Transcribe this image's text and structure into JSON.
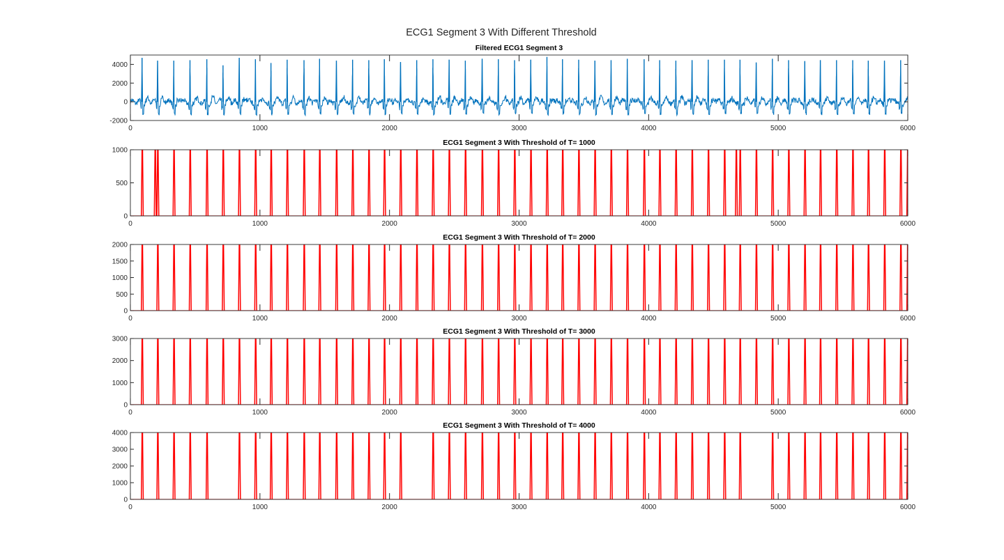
{
  "figure": {
    "suptitle": "ECG1 Segment 3 With Different Threshold"
  },
  "chart_data": [
    {
      "type": "line",
      "title": "Filtered ECG1 Segment 3",
      "xlabel": "",
      "ylabel": "",
      "xlim": [
        0,
        6000
      ],
      "ylim": [
        -2000,
        5000
      ],
      "xticks": [
        0,
        1000,
        2000,
        3000,
        4000,
        5000,
        6000
      ],
      "yticks": [
        -2000,
        0,
        2000,
        4000
      ],
      "grid": false,
      "color": "#0072BD",
      "r_peaks": [
        {
          "x": 90,
          "y": 4700
        },
        {
          "x": 210,
          "y": 4400
        },
        {
          "x": 335,
          "y": 4400
        },
        {
          "x": 460,
          "y": 4450
        },
        {
          "x": 590,
          "y": 4550
        },
        {
          "x": 715,
          "y": 3900
        },
        {
          "x": 840,
          "y": 4700
        },
        {
          "x": 965,
          "y": 4550
        },
        {
          "x": 1085,
          "y": 4150
        },
        {
          "x": 1210,
          "y": 4500
        },
        {
          "x": 1340,
          "y": 4450
        },
        {
          "x": 1460,
          "y": 4600
        },
        {
          "x": 1590,
          "y": 4400
        },
        {
          "x": 1715,
          "y": 4500
        },
        {
          "x": 1840,
          "y": 4450
        },
        {
          "x": 1960,
          "y": 4550
        },
        {
          "x": 2085,
          "y": 4250
        },
        {
          "x": 2210,
          "y": 4450
        },
        {
          "x": 2335,
          "y": 4550
        },
        {
          "x": 2460,
          "y": 4500
        },
        {
          "x": 2585,
          "y": 4400
        },
        {
          "x": 2715,
          "y": 4600
        },
        {
          "x": 2840,
          "y": 4550
        },
        {
          "x": 2965,
          "y": 4450
        },
        {
          "x": 3090,
          "y": 4500
        },
        {
          "x": 3215,
          "y": 4800
        },
        {
          "x": 3335,
          "y": 4550
        },
        {
          "x": 3460,
          "y": 4500
        },
        {
          "x": 3585,
          "y": 4400
        },
        {
          "x": 3710,
          "y": 4450
        },
        {
          "x": 3835,
          "y": 4600
        },
        {
          "x": 3965,
          "y": 4550
        },
        {
          "x": 4085,
          "y": 4450
        },
        {
          "x": 4210,
          "y": 4400
        },
        {
          "x": 4335,
          "y": 4450
        },
        {
          "x": 4460,
          "y": 4500
        },
        {
          "x": 4585,
          "y": 4500
        },
        {
          "x": 4705,
          "y": 4500
        },
        {
          "x": 4830,
          "y": 4200
        },
        {
          "x": 4955,
          "y": 4600
        },
        {
          "x": 5080,
          "y": 4450
        },
        {
          "x": 5205,
          "y": 4350
        },
        {
          "x": 5325,
          "y": 4450
        },
        {
          "x": 5450,
          "y": 4450
        },
        {
          "x": 5575,
          "y": 4450
        },
        {
          "x": 5695,
          "y": 4400
        },
        {
          "x": 5820,
          "y": 4400
        },
        {
          "x": 5945,
          "y": 4450
        }
      ]
    },
    {
      "type": "line",
      "title": "ECG1 Segment 3 With Threshold of T= 1000",
      "xlabel": "",
      "ylabel": "",
      "xlim": [
        0,
        6000
      ],
      "ylim": [
        0,
        1000
      ],
      "xticks": [
        0,
        1000,
        2000,
        3000,
        4000,
        5000,
        6000
      ],
      "yticks": [
        0,
        500,
        1000
      ],
      "grid": false,
      "color": "#FF0000",
      "pulse_level": 1000,
      "pulses": [
        90,
        190,
        210,
        335,
        460,
        590,
        715,
        840,
        965,
        1085,
        1210,
        1340,
        1460,
        1590,
        1715,
        1840,
        1960,
        2085,
        2210,
        2335,
        2460,
        2585,
        2715,
        2840,
        2965,
        3090,
        3215,
        3335,
        3460,
        3585,
        3710,
        3835,
        3965,
        4085,
        4210,
        4335,
        4460,
        4585,
        4675,
        4705,
        4830,
        4955,
        5080,
        5205,
        5325,
        5450,
        5575,
        5695,
        5820,
        5945,
        5998
      ]
    },
    {
      "type": "line",
      "title": "ECG1 Segment 3 With Threshold of T= 2000",
      "xlabel": "",
      "ylabel": "",
      "xlim": [
        0,
        6000
      ],
      "ylim": [
        0,
        2000
      ],
      "xticks": [
        0,
        1000,
        2000,
        3000,
        4000,
        5000,
        6000
      ],
      "yticks": [
        0,
        500,
        1000,
        1500,
        2000
      ],
      "grid": false,
      "color": "#FF0000",
      "pulse_level": 2000,
      "pulses": [
        90,
        210,
        335,
        460,
        590,
        715,
        840,
        965,
        1085,
        1210,
        1340,
        1460,
        1590,
        1715,
        1840,
        1960,
        2085,
        2210,
        2335,
        2460,
        2585,
        2715,
        2840,
        2965,
        3090,
        3215,
        3335,
        3460,
        3585,
        3710,
        3835,
        3965,
        4085,
        4210,
        4335,
        4460,
        4585,
        4705,
        4830,
        4955,
        5080,
        5205,
        5325,
        5450,
        5575,
        5695,
        5820,
        5945,
        5998
      ]
    },
    {
      "type": "line",
      "title": "ECG1 Segment 3 With Threshold of T= 3000",
      "xlabel": "",
      "ylabel": "",
      "xlim": [
        0,
        6000
      ],
      "ylim": [
        0,
        3000
      ],
      "xticks": [
        0,
        1000,
        2000,
        3000,
        4000,
        5000,
        6000
      ],
      "yticks": [
        0,
        1000,
        2000,
        3000
      ],
      "grid": false,
      "color": "#FF0000",
      "pulse_level": 3000,
      "pulses": [
        90,
        210,
        335,
        460,
        590,
        715,
        840,
        965,
        1085,
        1210,
        1340,
        1460,
        1590,
        1715,
        1840,
        1960,
        2085,
        2210,
        2335,
        2460,
        2585,
        2715,
        2840,
        2965,
        3090,
        3215,
        3335,
        3460,
        3585,
        3710,
        3835,
        3965,
        4085,
        4210,
        4335,
        4460,
        4585,
        4705,
        4830,
        4955,
        5080,
        5205,
        5325,
        5450,
        5575,
        5695,
        5820,
        5945,
        5998
      ]
    },
    {
      "type": "line",
      "title": "ECG1 Segment 3 With Threshold of T= 4000",
      "xlabel": "",
      "ylabel": "",
      "xlim": [
        0,
        6000
      ],
      "ylim": [
        0,
        4000
      ],
      "xticks": [
        0,
        1000,
        2000,
        3000,
        4000,
        5000,
        6000
      ],
      "yticks": [
        0,
        1000,
        2000,
        3000,
        4000
      ],
      "grid": false,
      "color": "#FF0000",
      "pulse_level": 4000,
      "pulses": [
        90,
        210,
        335,
        460,
        590,
        840,
        965,
        1085,
        1210,
        1340,
        1460,
        1590,
        1715,
        1840,
        1960,
        2085,
        2335,
        2460,
        2585,
        2715,
        2840,
        2965,
        3090,
        3215,
        3335,
        3460,
        3585,
        3710,
        3835,
        3965,
        4085,
        4210,
        4335,
        4460,
        4585,
        4705,
        4955,
        5080,
        5205,
        5325,
        5450,
        5575,
        5695,
        5820,
        5945,
        5998
      ]
    }
  ]
}
